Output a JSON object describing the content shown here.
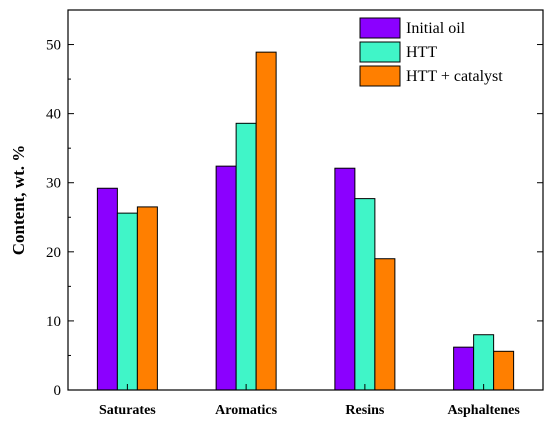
{
  "chart_data": {
    "type": "bar",
    "categories": [
      "Saturates",
      "Aromatics",
      "Resins",
      "Asphaltenes"
    ],
    "series": [
      {
        "name": "Initial oil",
        "values": [
          29.2,
          32.4,
          32.1,
          6.2
        ]
      },
      {
        "name": "HTT",
        "values": [
          25.6,
          38.6,
          27.7,
          8.0
        ]
      },
      {
        "name": "HTT + catalyst",
        "values": [
          26.5,
          48.9,
          19.0,
          5.6
        ]
      }
    ],
    "title": "",
    "xlabel": "",
    "ylabel": "Content, wt. %",
    "ylim": [
      0,
      55
    ],
    "yticks": [
      0,
      10,
      20,
      30,
      40,
      50
    ],
    "legend_position": "top-right",
    "grid": false,
    "colors": {
      "Initial oil": "#8B00FF",
      "HTT": "#40F5C8",
      "HTT + catalyst": "#FF7F00"
    }
  }
}
